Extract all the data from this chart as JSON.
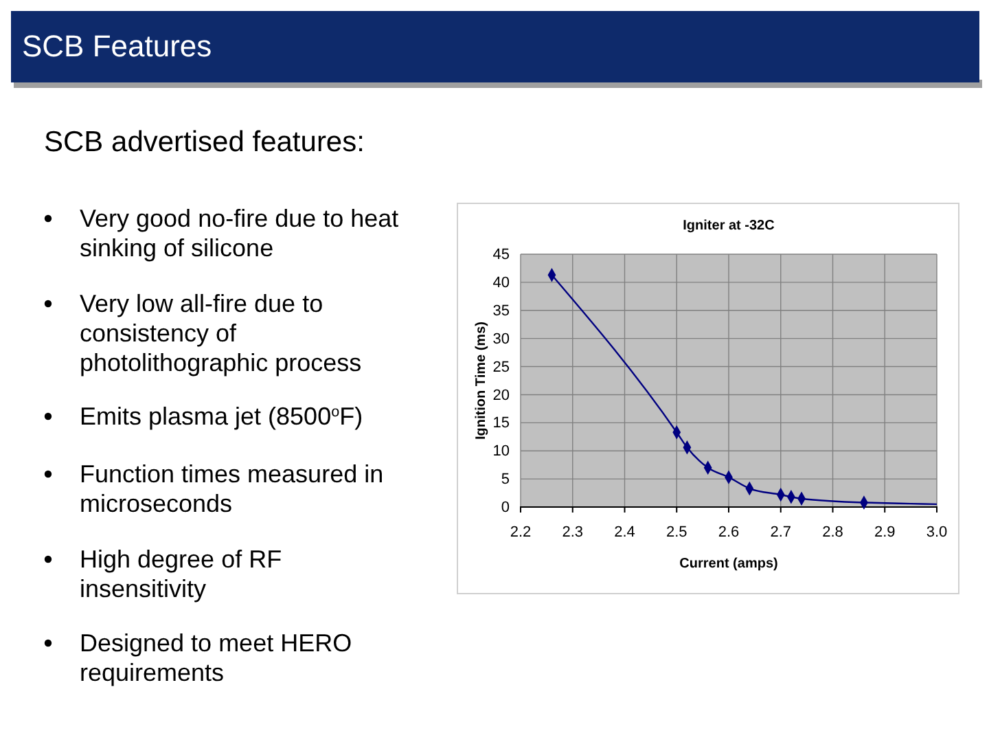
{
  "chart_data": {
    "type": "line",
    "title": "Igniter at -32C",
    "xlabel": "Current (amps)",
    "ylabel": "Ignition Time (ms)",
    "annotations": [
      "SCB Features",
      "SCB advertised features:",
      "Very good no-fire due to heat sinking of silicone",
      "Very low all-fire due to consistency of photolithographic process",
      "Emits plasma jet (8500$^{o}$F)",
      "Function times measured in microseconds",
      "High degree of RF insensitivity",
      "Designed to meet HERO requirements"
    ],
    "series": [
      {
        "color": "#000080",
        "marker": "diamond",
        "x": [
          2.26,
          2.5,
          2.52,
          2.56,
          2.6,
          2.64,
          2.7,
          2.72,
          2.74,
          2.86
        ],
        "values": [
          41.3,
          13.3,
          10.6,
          7,
          5.3,
          3.3,
          2.2,
          1.8,
          1.5,
          0.8
        ]
      },
      {
        "color": "#000080",
        "marker": "none",
        "x": [
          2.86,
          2.95,
          3.0
        ],
        "values": [
          0.8,
          0.6,
          0.5
        ]
      }
    ],
    "xlim": [
      2.2,
      3.0
    ],
    "xticks": [
      {
        "value": 2.2,
        "label": "2.2"
      },
      {
        "value": 2.3,
        "label": "2.3"
      },
      {
        "value": 2.4,
        "label": "2.4"
      },
      {
        "value": 2.5,
        "label": "2.5"
      },
      {
        "value": 2.6,
        "label": "2.6"
      },
      {
        "value": 2.7,
        "label": "2.7"
      },
      {
        "value": 2.8,
        "label": "2.8"
      },
      {
        "value": 2.9,
        "label": "2.9"
      },
      {
        "value": 3.0,
        "label": "3.0"
      }
    ],
    "ylim": [
      0,
      45
    ],
    "yticks": [
      0,
      5,
      10,
      15,
      20,
      25,
      30,
      35,
      40,
      45
    ],
    "grid": true,
    "line_style": "solid"
  }
}
